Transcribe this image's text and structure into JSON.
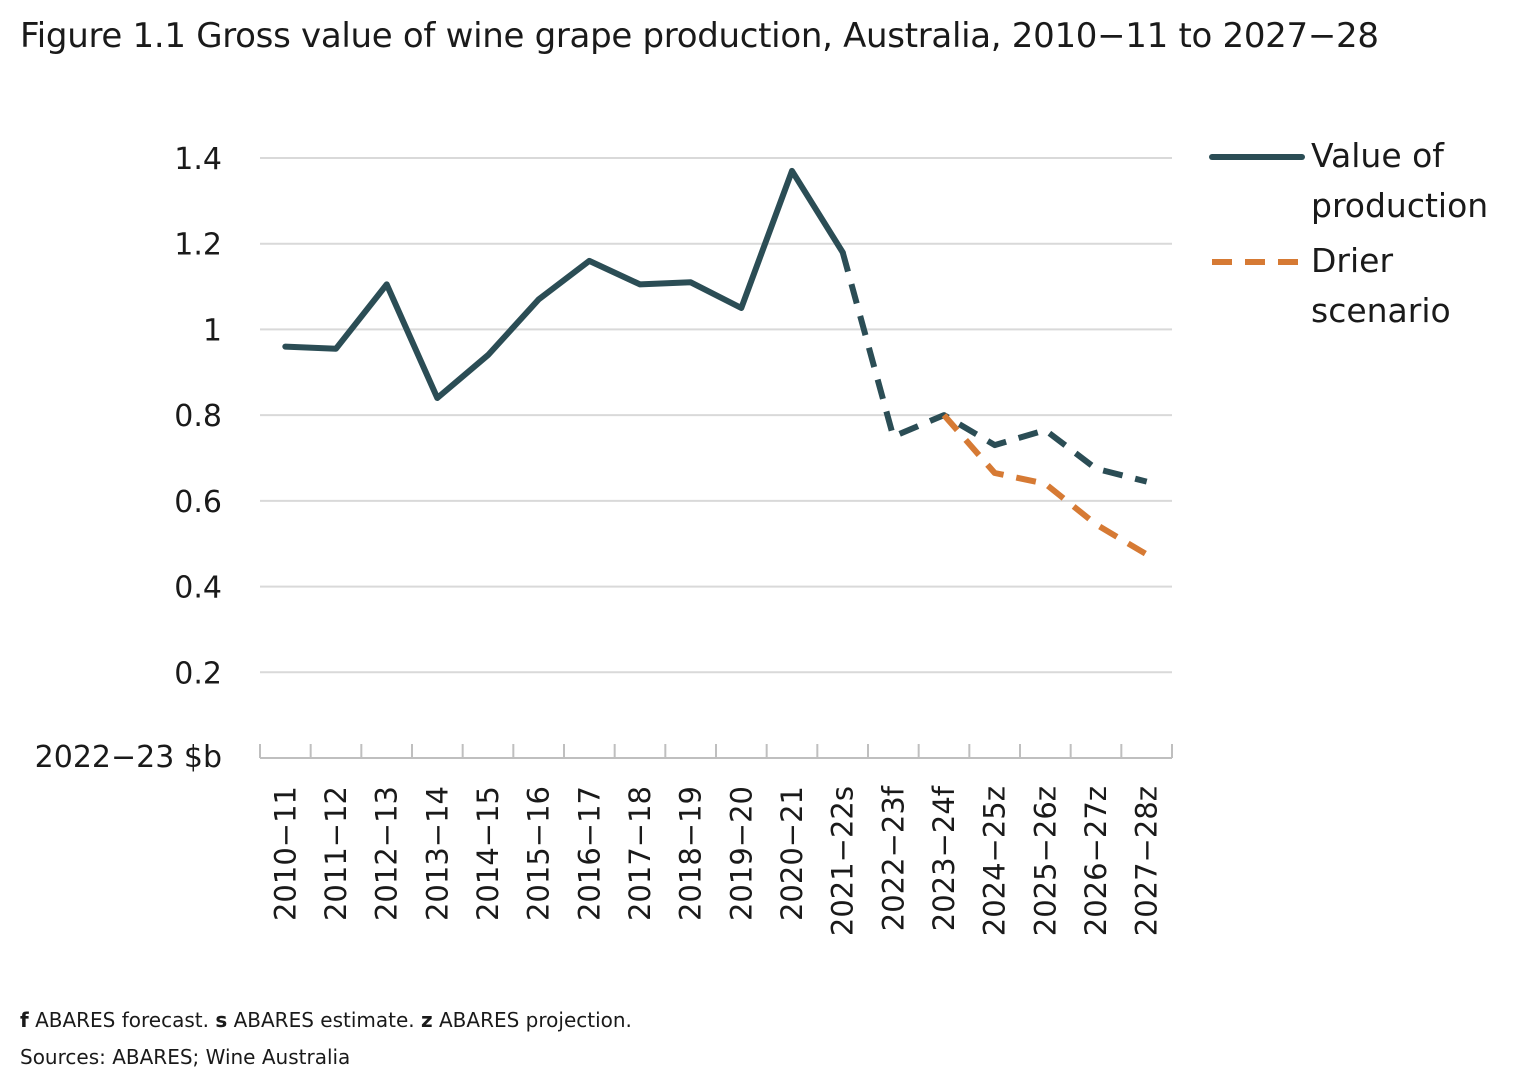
{
  "title": "Figure 1.1 Gross value of wine grape production, Australia, 2010−11 to 2027−28",
  "notes": {
    "f_key": "f",
    "f_text": "ABARES forecast.",
    "s_key": "s",
    "s_text": "ABARES estimate.",
    "z_key": "z",
    "z_text": "ABARES projection.",
    "sources": "Sources: ABARES; Wine Australia"
  },
  "chart_data": {
    "type": "line",
    "ylabel": "2022−23 $b",
    "ylim": [
      0,
      1.4
    ],
    "yticks": [
      "0.2",
      "0.4",
      "0.6",
      "0.8",
      "1",
      "1.2",
      "1.4"
    ],
    "grid": true,
    "legend_position": "right",
    "categories": [
      "2010−11",
      "2011−12",
      "2012−13",
      "2013−14",
      "2014−15",
      "2015−16",
      "2016−17",
      "2017−18",
      "2018−19",
      "2019−20",
      "2020−21",
      "2021−22s",
      "2022−23f",
      "2023−24f",
      "2024−25z",
      "2025−26z",
      "2026−27z",
      "2027−28z"
    ],
    "series": [
      {
        "name": "Value of production",
        "legend_lines": [
          "Value of",
          "production"
        ],
        "color": "#2b4d55",
        "solid_until_index": 11,
        "values": [
          0.96,
          0.955,
          1.105,
          0.84,
          0.94,
          1.07,
          1.16,
          1.105,
          1.11,
          1.05,
          1.37,
          1.18,
          0.75,
          0.8,
          0.73,
          0.765,
          0.675,
          0.645
        ]
      },
      {
        "name": "Drier scenario",
        "legend_lines": [
          "Drier",
          "scenario"
        ],
        "color": "#d67a34",
        "dashed": true,
        "values": [
          null,
          null,
          null,
          null,
          null,
          null,
          null,
          null,
          null,
          null,
          null,
          null,
          null,
          0.8,
          0.665,
          0.64,
          0.545,
          0.475
        ]
      }
    ]
  }
}
